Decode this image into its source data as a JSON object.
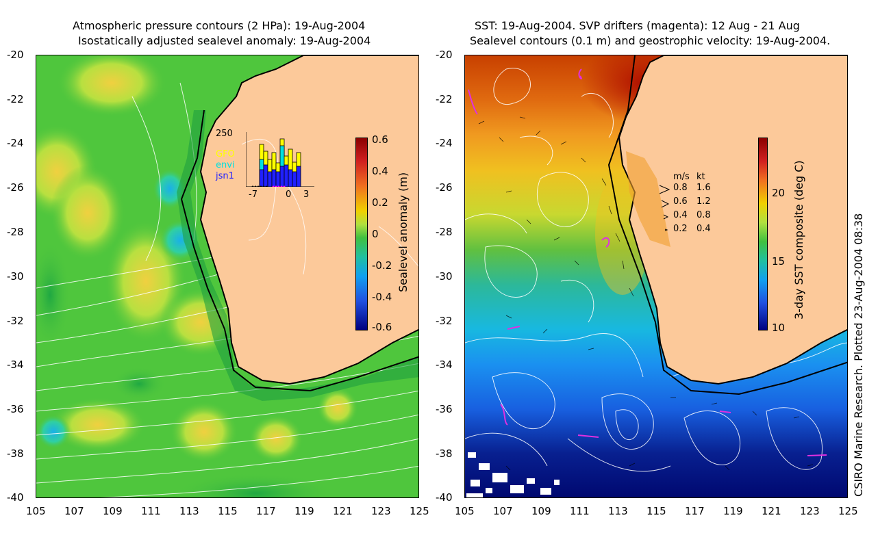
{
  "left_map": {
    "title_line1": "Atmospheric pressure contours (2 HPa): 19-Aug-2004",
    "title_line2": "Isostatically adjusted sealevel anomaly: 19-Aug-2004",
    "colorbar_label": "Sealevel anomaly (m)",
    "colorbar_ticks": [
      "0.6",
      "0.4",
      "0.2",
      "0",
      "-0.2",
      "-0.4",
      "-0.6"
    ],
    "colorbar_range": [
      -0.6,
      0.6
    ],
    "inset": {
      "ymax_label": "250",
      "x_ticks": [
        "-7",
        "0",
        "3"
      ],
      "legend": [
        {
          "name": "GFO",
          "color": "#ffff00"
        },
        {
          "name": "envi",
          "color": "#00e0e0"
        },
        {
          "name": "jsn1",
          "color": "#2020ff"
        }
      ]
    }
  },
  "right_map": {
    "title_line1": "SST: 19-Aug-2004. SVP drifters (magenta): 12 Aug - 21 Aug",
    "title_line2": "Sealevel contours (0.1 m) and geostrophic velocity: 19-Aug-2004.",
    "colorbar_label": "3-day SST composite (deg C)",
    "colorbar_ticks": [
      "20",
      "15",
      "10"
    ],
    "colorbar_range": [
      10,
      24
    ],
    "velocity_key": {
      "header_ms": "m/s",
      "header_kt": "kt",
      "rows": [
        {
          "ms": "0.8",
          "kt": "1.6"
        },
        {
          "ms": "0.6",
          "kt": "1.2"
        },
        {
          "ms": "0.4",
          "kt": "0.8"
        },
        {
          "ms": "0.2",
          "kt": "0.4"
        }
      ]
    }
  },
  "axes": {
    "y_labels": [
      "-20",
      "-22",
      "-24",
      "-26",
      "-28",
      "-30",
      "-32",
      "-34",
      "-36",
      "-38",
      "-40"
    ],
    "x_labels": [
      "105",
      "107",
      "109",
      "111",
      "113",
      "115",
      "117",
      "119",
      "121",
      "123",
      "125"
    ]
  },
  "credit": "CSIRO Marine Research. Plotted 23-Aug-2004 08:38",
  "colors": {
    "land": "#fcc99a",
    "coast": "#000000",
    "contour": "#ffffff"
  }
}
